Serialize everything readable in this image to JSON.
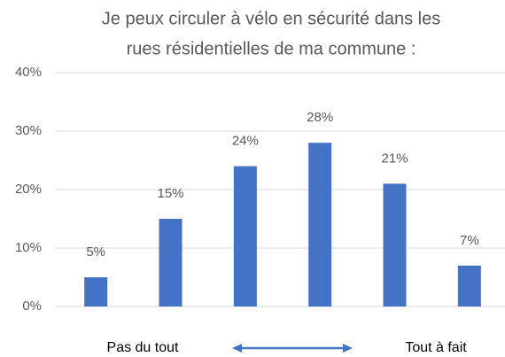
{
  "chart_data": {
    "type": "bar",
    "title": [
      "Je peux circuler à vélo en sécurité dans les",
      "rues résidentielles de ma commune :"
    ],
    "categories": [
      null,
      null,
      null,
      null,
      null,
      null
    ],
    "values": [
      5,
      15,
      24,
      28,
      21,
      7
    ],
    "value_labels": [
      "5%",
      "15%",
      "24%",
      "28%",
      "21%",
      "7%"
    ],
    "color": "#4472c4",
    "ylim": [
      0,
      40
    ],
    "yticks": [
      {
        "value": 0,
        "label": "0%"
      },
      {
        "value": 10,
        "label": "10%"
      },
      {
        "value": 20,
        "label": "20%"
      },
      {
        "value": 30,
        "label": "30%"
      },
      {
        "value": 40,
        "label": "40%"
      }
    ],
    "grid": true,
    "annotations": [
      "Pas du tout",
      "Tout à fait"
    ]
  }
}
